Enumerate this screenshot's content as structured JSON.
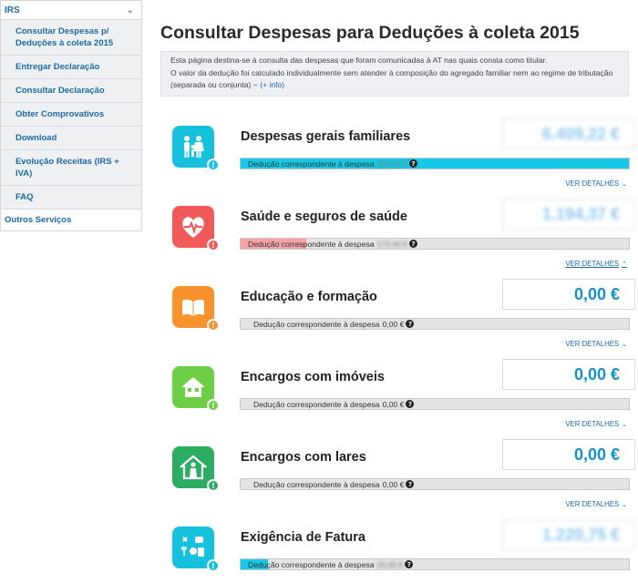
{
  "sidebar": {
    "header": "IRS",
    "items": [
      {
        "label": "Consultar Despesas p/ Deduções à coleta 2015"
      },
      {
        "label": "Entregar Declaração"
      },
      {
        "label": "Consultar Declaração"
      },
      {
        "label": "Obter Comprovativos"
      },
      {
        "label": "Download"
      },
      {
        "label": "Evolução Receitas (IRS + IVA)"
      },
      {
        "label": "FAQ"
      }
    ],
    "other": "Outros Serviços"
  },
  "page": {
    "title": "Consultar Despesas para Deduções à coleta 2015",
    "info_line1": "Esta página destina-se à consulta das despesas que foram comunicadas à AT nas quais consta como titular.",
    "info_line2": "O valor da dedução foi calculado individualmente sem atender à composição do agregado familiar nem ao regime de tributação (separada ou conjunta) −",
    "info_more": "(+ info)"
  },
  "common": {
    "bar_label": "Dedução correspondente à despesa",
    "details_label": "VER DETALHES",
    "help_glyph": "?",
    "badge_glyph": "!"
  },
  "categories": [
    {
      "title": "Despesas gerais familiares",
      "amount": "6.409,22 €",
      "deduction": "250,00 €",
      "fill_fraction": 1.0,
      "color": "#16c1de",
      "bar_color": "#15c9e6",
      "icon": "family-icon",
      "expanded": false
    },
    {
      "title": "Saúde e seguros de saúde",
      "amount": "1.194,37 €",
      "deduction": "173,40 €",
      "fill_fraction": 0.17,
      "color": "#f25a5a",
      "bar_color": "#f5a3a3",
      "icon": "heart-monitor-icon",
      "expanded": true
    },
    {
      "title": "Educação e formação",
      "amount": "0,00 €",
      "deduction": "0,00 €",
      "fill_fraction": 0.0,
      "color": "#f7922c",
      "bar_color": "#f7922c",
      "icon": "book-icon",
      "expanded": false
    },
    {
      "title": "Encargos com imóveis",
      "amount": "0,00 €",
      "deduction": "0,00 €",
      "fill_fraction": 0.0,
      "color": "#6ccf45",
      "bar_color": "#6ccf45",
      "icon": "house-icon",
      "expanded": false
    },
    {
      "title": "Encargos com lares",
      "amount": "0,00 €",
      "deduction": "0,00 €",
      "fill_fraction": 0.0,
      "color": "#2bae62",
      "bar_color": "#2bae62",
      "icon": "elderly-home-icon",
      "expanded": false
    },
    {
      "title": "Exigência de Fatura",
      "amount": "1.220,75 €",
      "deduction": "20,40 €",
      "fill_fraction": 0.07,
      "color": "#16c1de",
      "bar_color": "#15c9e6",
      "icon": "services-icon",
      "expanded": false
    }
  ]
}
